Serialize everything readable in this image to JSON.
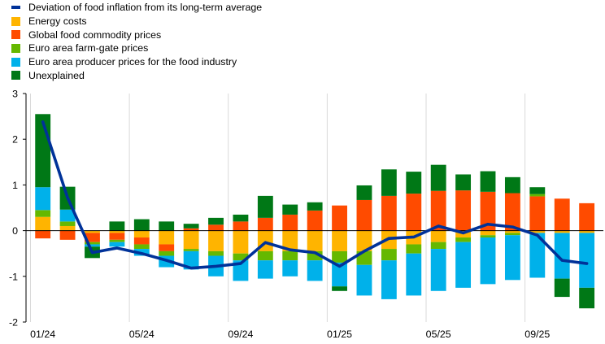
{
  "chart_data": {
    "type": "bar",
    "stacked": true,
    "grid": false,
    "legend_position": "top-left",
    "categories": [
      "01/24",
      "02/24",
      "03/24",
      "04/24",
      "05/24",
      "06/24",
      "07/24",
      "08/24",
      "09/24",
      "10/24",
      "11/24",
      "12/24",
      "01/25",
      "02/25",
      "03/25",
      "04/25",
      "05/25",
      "06/25",
      "07/25",
      "08/25",
      "09/25",
      "10/25",
      "11/25"
    ],
    "x_tick_labels": [
      "01/24",
      "05/24",
      "09/24",
      "01/25",
      "05/25",
      "09/25"
    ],
    "x_tick_indices": [
      0,
      4,
      8,
      12,
      16,
      20
    ],
    "ylim": [
      -2,
      3
    ],
    "yticks": [
      -2,
      -1,
      0,
      1,
      2,
      3
    ],
    "series": [
      {
        "name": "Energy costs",
        "color": "#FFB400",
        "values": [
          0.3,
          0.1,
          -0.05,
          -0.05,
          -0.15,
          -0.3,
          -0.4,
          -0.45,
          -0.5,
          -0.45,
          -0.45,
          -0.45,
          -0.45,
          -0.45,
          -0.4,
          -0.3,
          -0.25,
          -0.15,
          -0.1,
          -0.05,
          -0.05,
          -0.05,
          -0.05
        ]
      },
      {
        "name": "Global food commodity prices",
        "color": "#FF4B00",
        "values": [
          -0.17,
          -0.2,
          -0.2,
          -0.15,
          -0.15,
          -0.15,
          0.05,
          0.13,
          0.2,
          0.28,
          0.35,
          0.44,
          0.55,
          0.67,
          0.76,
          0.81,
          0.87,
          0.88,
          0.85,
          0.82,
          0.75,
          0.7,
          0.6
        ]
      },
      {
        "name": "Euro area farm-gate prices",
        "color": "#65B800",
        "values": [
          0.15,
          0.1,
          -0.05,
          -0.05,
          -0.1,
          -0.1,
          -0.05,
          -0.1,
          -0.15,
          -0.2,
          -0.2,
          -0.2,
          -0.25,
          -0.3,
          -0.25,
          -0.2,
          -0.15,
          -0.1,
          -0.05,
          -0.05,
          0.05,
          0.0,
          0.0
        ]
      },
      {
        "name": "Euro area producer prices for the food industry",
        "color": "#00B1EA",
        "values": [
          0.5,
          0.26,
          -0.05,
          -0.1,
          -0.15,
          -0.25,
          -0.4,
          -0.45,
          -0.45,
          -0.4,
          -0.35,
          -0.45,
          -0.52,
          -0.67,
          -0.85,
          -0.92,
          -0.92,
          -1.0,
          -1.02,
          -0.98,
          -0.98,
          -1.0,
          -1.2
        ]
      },
      {
        "name": "Unexplained",
        "color": "#007816",
        "values": [
          1.6,
          0.5,
          -0.25,
          0.2,
          0.25,
          0.2,
          0.1,
          0.15,
          0.15,
          0.48,
          0.22,
          0.18,
          -0.1,
          0.32,
          0.58,
          0.48,
          0.57,
          0.35,
          0.45,
          0.35,
          0.15,
          -0.4,
          -0.45
        ]
      }
    ],
    "line_series": {
      "name": "Deviation of food inflation from its long-term average",
      "color": "#003299",
      "values": [
        2.38,
        0.72,
        -0.48,
        -0.38,
        -0.5,
        -0.65,
        -0.82,
        -0.78,
        -0.72,
        -0.26,
        -0.42,
        -0.48,
        -0.78,
        -0.45,
        -0.17,
        -0.14,
        0.1,
        -0.05,
        0.14,
        0.08,
        -0.1,
        -0.65,
        -0.72
      ]
    }
  },
  "legend": [
    {
      "label": "Deviation of food inflation from its long-term average",
      "color": "#003299",
      "kind": "line"
    },
    {
      "label": "Energy costs",
      "color": "#FFB400",
      "kind": "box"
    },
    {
      "label": "Global food commodity prices",
      "color": "#FF4B00",
      "kind": "box"
    },
    {
      "label": "Euro area farm-gate prices",
      "color": "#65B800",
      "kind": "box"
    },
    {
      "label": "Euro area producer prices for the food industry",
      "color": "#00B1EA",
      "kind": "box"
    },
    {
      "label": "Unexplained",
      "color": "#007816",
      "kind": "box"
    }
  ]
}
